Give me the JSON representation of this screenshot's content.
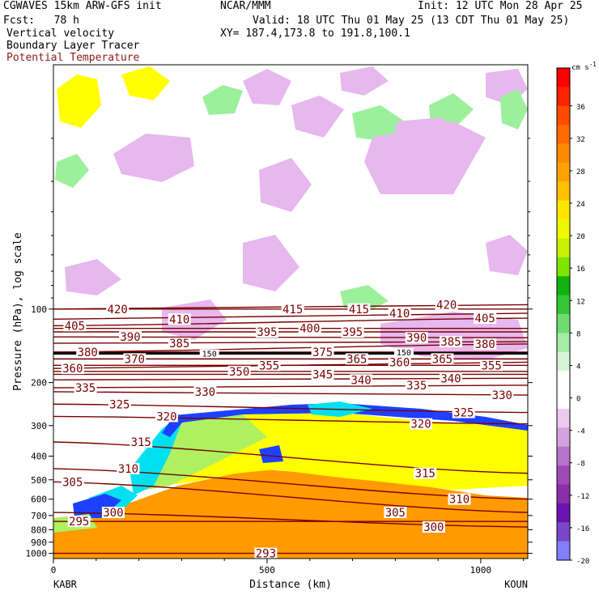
{
  "header": {
    "model": "CGWAVES 15km ARW-GFS init",
    "org": "NCAR/MMM",
    "init": "Init: 12 UTC Mon 28 Apr 25",
    "fcst": "Fcst:   78 h",
    "valid": "Valid: 18 UTC Thu 01 May 25 (13 CDT Thu 01 May 25)",
    "xy": "XY= 187.4,173.8 to 191.8,100.1",
    "field1": "Vertical velocity",
    "field2": "Boundary Layer Tracer",
    "field3": "Potential Temperature"
  },
  "colors": {
    "potential_temperature": "#7a0000",
    "tropopause": "#000000"
  },
  "chart_data": {
    "type": "heatmap",
    "ylabel": "Pressure (hPa), log scale",
    "xlabel": "Distance (km)",
    "x_start_label": "KABR",
    "x_end_label": "KOUN",
    "xlim": [
      0,
      1110
    ],
    "ylim": [
      1050,
      10
    ],
    "y_scale": "log",
    "x_ticks": [
      0,
      500,
      1000
    ],
    "y_ticks": [
      100,
      200,
      300,
      400,
      500,
      600,
      700,
      800,
      900,
      1000
    ],
    "colorbar": {
      "unit": "cm s",
      "unit_superscript": "-1",
      "tick_labels": [
        "36",
        "32",
        "28",
        "24",
        "20",
        "16",
        "12",
        "8",
        "4",
        "0",
        "-4",
        "-8",
        "-12",
        "-16",
        "-20"
      ],
      "colors": [
        "#7f7fff",
        "#7a47c8",
        "#6a13b0",
        "#8a2fa8",
        "#a04ab8",
        "#b874cc",
        "#d3a3e0",
        "#ecc9ef",
        "#ffffff",
        "#ffffff",
        "#d6f5d6",
        "#a6eba6",
        "#6fdc6f",
        "#36c836",
        "#0fb40f",
        "#7fe400",
        "#c8f000",
        "#f0f800",
        "#ffe600",
        "#ffc000",
        "#ffa300",
        "#ff8c00",
        "#ff6a00",
        "#ff4a00",
        "#ff2400",
        "#ff0000"
      ]
    },
    "theta_contours": [
      {
        "value": "293",
        "label_points": [
          [
            497,
            1000
          ]
        ]
      },
      {
        "value": "295",
        "label_points": [
          [
            60,
            740
          ]
        ]
      },
      {
        "value": "300",
        "label_points": [
          [
            140,
            680
          ],
          [
            890,
            780
          ]
        ]
      },
      {
        "value": "305",
        "label_points": [
          [
            45,
            510
          ],
          [
            800,
            680
          ]
        ]
      },
      {
        "value": "310",
        "label_points": [
          [
            175,
            450
          ],
          [
            950,
            600
          ]
        ]
      },
      {
        "value": "315",
        "label_points": [
          [
            205,
            350
          ],
          [
            870,
            470
          ]
        ]
      },
      {
        "value": "320",
        "label_points": [
          [
            265,
            275
          ],
          [
            860,
            295
          ]
        ]
      },
      {
        "value": "325",
        "label_points": [
          [
            155,
            245
          ],
          [
            960,
            265
          ]
        ]
      },
      {
        "value": "330",
        "label_points": [
          [
            355,
            218
          ],
          [
            1050,
            225
          ]
        ]
      },
      {
        "value": "335",
        "label_points": [
          [
            75,
            210
          ],
          [
            850,
            205
          ]
        ]
      },
      {
        "value": "340",
        "label_points": [
          [
            720,
            195
          ],
          [
            930,
            192
          ]
        ]
      },
      {
        "value": "345",
        "label_points": [
          [
            630,
            185
          ]
        ]
      },
      {
        "value": "350",
        "label_points": [
          [
            435,
            180
          ]
        ]
      },
      {
        "value": "355",
        "label_points": [
          [
            505,
            170
          ],
          [
            1025,
            170
          ]
        ]
      },
      {
        "value": "360",
        "label_points": [
          [
            45,
            175
          ],
          [
            810,
            165
          ]
        ]
      },
      {
        "value": "365",
        "label_points": [
          [
            710,
            160
          ],
          [
            910,
            160
          ]
        ]
      },
      {
        "value": "370",
        "label_points": [
          [
            190,
            160
          ]
        ]
      },
      {
        "value": "375",
        "label_points": [
          [
            630,
            150
          ]
        ]
      },
      {
        "value": "380",
        "label_points": [
          [
            80,
            150
          ],
          [
            1010,
            139
          ]
        ]
      },
      {
        "value": "385",
        "label_points": [
          [
            295,
            138
          ],
          [
            930,
            136
          ]
        ]
      },
      {
        "value": "390",
        "label_points": [
          [
            180,
            130
          ],
          [
            850,
            131
          ]
        ]
      },
      {
        "value": "395",
        "label_points": [
          [
            500,
            124
          ],
          [
            700,
            124
          ]
        ]
      },
      {
        "value": "400",
        "label_points": [
          [
            600,
            120
          ]
        ]
      },
      {
        "value": "405",
        "label_points": [
          [
            50,
            117
          ],
          [
            1010,
            109
          ]
        ]
      },
      {
        "value": "410",
        "label_points": [
          [
            295,
            110
          ],
          [
            810,
            104
          ]
        ]
      },
      {
        "value": "415",
        "label_points": [
          [
            560,
            100
          ],
          [
            715,
            100
          ]
        ]
      },
      {
        "value": "420",
        "label_points": [
          [
            150,
            100
          ],
          [
            920,
            96
          ]
        ]
      }
    ],
    "tropopause_labels": [
      {
        "value": "150",
        "label_points": [
          [
            365,
            152
          ],
          [
            820,
            150
          ]
        ]
      }
    ],
    "regions": [
      {
        "name": "boundary layer tracer (orange)",
        "fill": "#ff9a00"
      },
      {
        "name": "boundary layer tracer (yellow)",
        "fill": "#ffff00"
      },
      {
        "name": "boundary layer tracer (green)",
        "fill": "#aef060"
      },
      {
        "name": "boundary layer tracer (cyan)",
        "fill": "#00e0f0"
      },
      {
        "name": "boundary layer tracer (blue)",
        "fill": "#1e40ff"
      },
      {
        "name": "upward motion",
        "fill": "#9cf09c"
      },
      {
        "name": "downward motion",
        "fill": "#e6b8ee"
      }
    ]
  }
}
